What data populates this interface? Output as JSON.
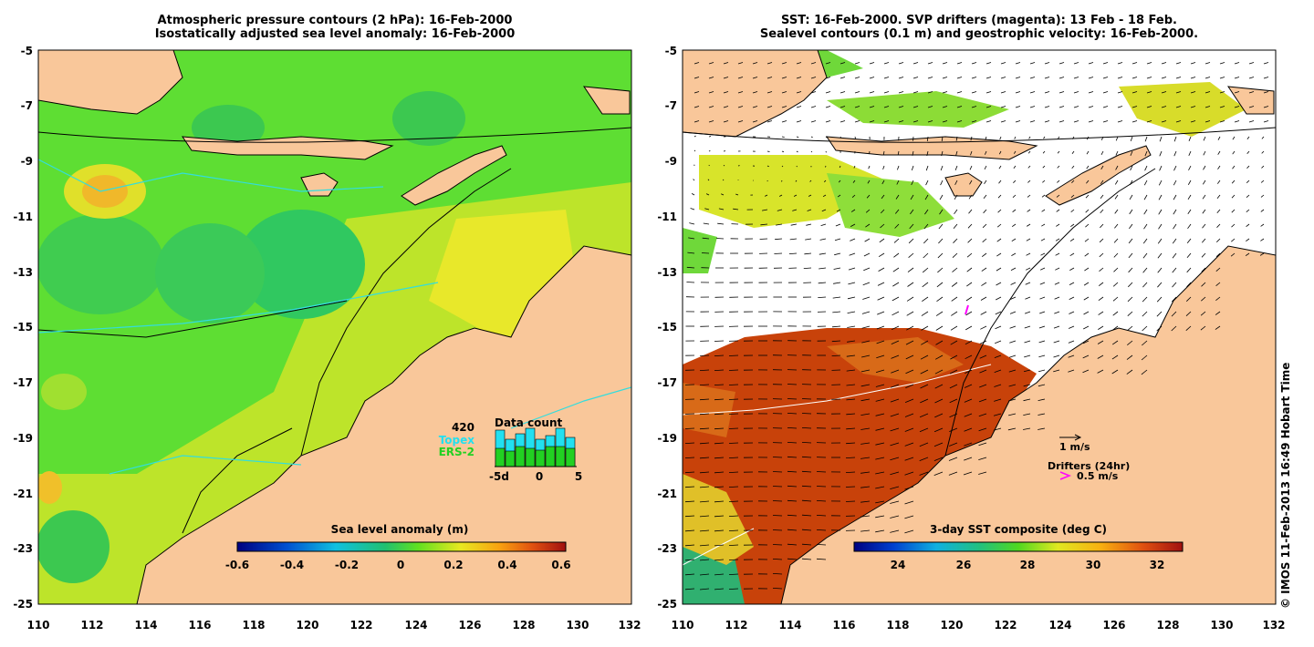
{
  "left_panel": {
    "title_line1": "Atmospheric pressure contours (2 hPa): 16-Feb-2000",
    "title_line2": "Isostatically adjusted sea level anomaly: 16-Feb-2000",
    "colorbar_label": "Sea level anomaly (m)",
    "colorbar_ticks": [
      "-0.6",
      "-0.4",
      "-0.2",
      "0",
      "0.2",
      "0.4",
      "0.6"
    ],
    "data_count": {
      "title": "Data count",
      "max_label": "420",
      "topex_label": "Topex",
      "ers_label": "ERS-2",
      "axis_ticks": [
        "-5d",
        "0",
        "5"
      ],
      "topex_color": "#22e0f0",
      "ers_color": "#22d022"
    }
  },
  "right_panel": {
    "title_line1": "SST: 16-Feb-2000. SVP drifters (magenta): 13 Feb - 18 Feb.",
    "title_line2": "Sealevel contours (0.1 m) and geostrophic velocity: 16-Feb-2000.",
    "velocity_scale_label": "1 m/s",
    "drifters_label": "Drifters (24hr)",
    "drifter_scale_label": "0.5 m/s",
    "drifter_color": "#ff00ff",
    "colorbar_label": "3-day SST composite (deg C)",
    "colorbar_ticks": [
      "24",
      "26",
      "28",
      "30",
      "32"
    ]
  },
  "axes": {
    "lat_ticks": [
      "-5",
      "-7",
      "-9",
      "-11",
      "-13",
      "-15",
      "-17",
      "-19",
      "-21",
      "-23",
      "-25"
    ],
    "lon_ticks": [
      "110",
      "112",
      "114",
      "116",
      "118",
      "120",
      "122",
      "124",
      "126",
      "128",
      "130",
      "132"
    ]
  },
  "colors": {
    "land": "#f9c79a",
    "coast": "#000000",
    "ocean_green": "#4fd92f",
    "ocean_yellow": "#ece82a",
    "sst_hot": "#c8420a"
  },
  "copyright": "© IMOS 11-Feb-2013 16:49 Hobart Time"
}
